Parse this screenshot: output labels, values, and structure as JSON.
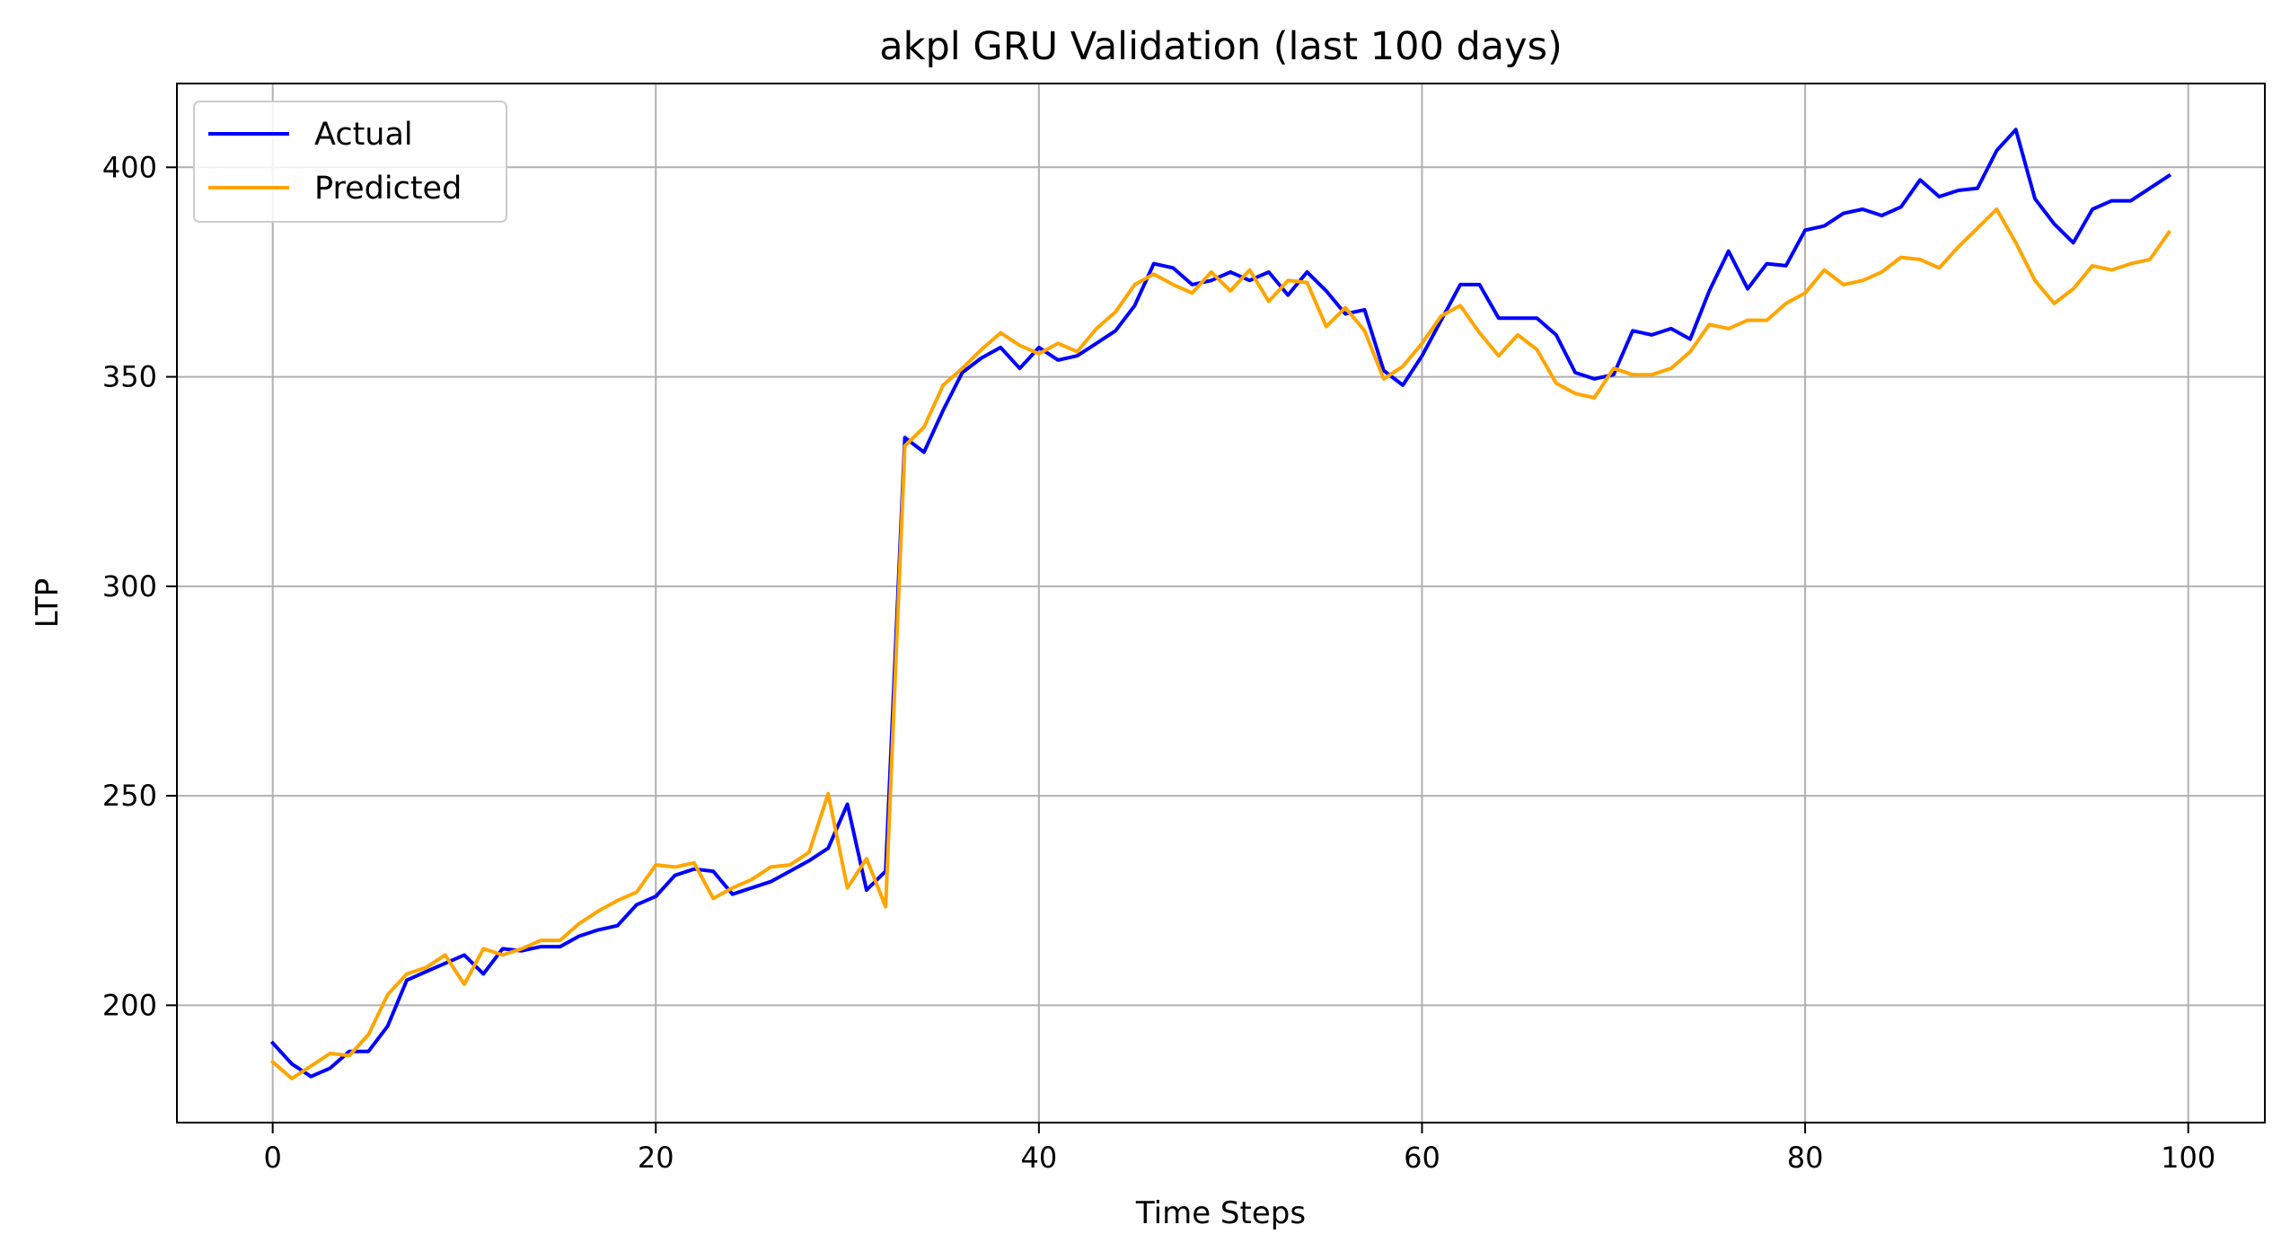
{
  "chart_data": {
    "type": "line",
    "title": "akpl GRU Validation (last 100 days)",
    "xlabel": "Time Steps",
    "ylabel": "LTP",
    "xlim": [
      -5,
      104
    ],
    "ylim": [
      172,
      420
    ],
    "xticks": [
      0,
      20,
      40,
      60,
      80,
      100
    ],
    "yticks": [
      200,
      250,
      300,
      350,
      400
    ],
    "grid": true,
    "legend": "top-left",
    "series": [
      {
        "name": "Actual",
        "color": "#0000ff",
        "values": [
          191,
          186,
          183,
          185,
          189,
          189,
          195,
          206,
          208,
          210,
          212,
          207.5,
          213.5,
          213,
          214,
          214,
          216.5,
          218,
          219,
          224,
          226,
          231,
          232.5,
          232,
          226.5,
          228,
          229.5,
          232,
          234.5,
          237.5,
          248,
          227.5,
          232,
          335.5,
          332,
          342,
          351,
          354.5,
          357,
          352,
          357,
          354,
          355,
          358,
          361,
          367,
          377,
          376,
          372,
          373,
          375,
          373,
          375,
          369.5,
          375,
          370.5,
          365,
          366,
          351.5,
          348,
          355,
          363.5,
          372,
          372,
          364,
          364,
          364,
          360,
          351,
          349.5,
          350.5,
          361,
          360,
          361.5,
          359,
          370.5,
          380,
          371,
          377,
          376.5,
          385,
          386,
          389,
          390,
          388.5,
          390.5,
          397,
          393,
          394.5,
          395,
          404,
          409,
          392.5,
          386.5,
          382,
          390,
          392,
          392,
          395,
          398
        ]
      },
      {
        "name": "Predicted",
        "color": "#ffa500",
        "values": [
          186.5,
          182.5,
          185.5,
          188.5,
          188,
          193,
          202.5,
          207.5,
          209,
          212,
          205,
          213.5,
          212,
          213.5,
          215.5,
          215.5,
          219.5,
          222.5,
          225,
          227,
          233.5,
          233,
          234,
          225.5,
          228,
          230,
          233,
          233.5,
          236.5,
          250.5,
          228,
          235,
          223.5,
          333.5,
          338,
          348,
          352,
          356.5,
          360.5,
          357.5,
          355.5,
          358,
          356,
          361.5,
          365.5,
          372,
          374.5,
          372,
          370,
          375,
          370.5,
          375.5,
          368,
          373,
          372.5,
          362,
          366.5,
          361,
          349.5,
          352.5,
          358,
          364.5,
          367,
          360.5,
          355,
          360,
          356.5,
          348.5,
          346,
          345,
          352,
          350.5,
          350.5,
          352,
          356,
          362.5,
          361.5,
          363.5,
          363.5,
          367.5,
          370,
          375.5,
          372,
          373,
          375,
          378.5,
          378,
          376,
          381,
          385.5,
          390,
          382,
          373,
          367.5,
          371,
          376.5,
          375.5,
          377,
          378,
          384.5
        ]
      }
    ]
  }
}
